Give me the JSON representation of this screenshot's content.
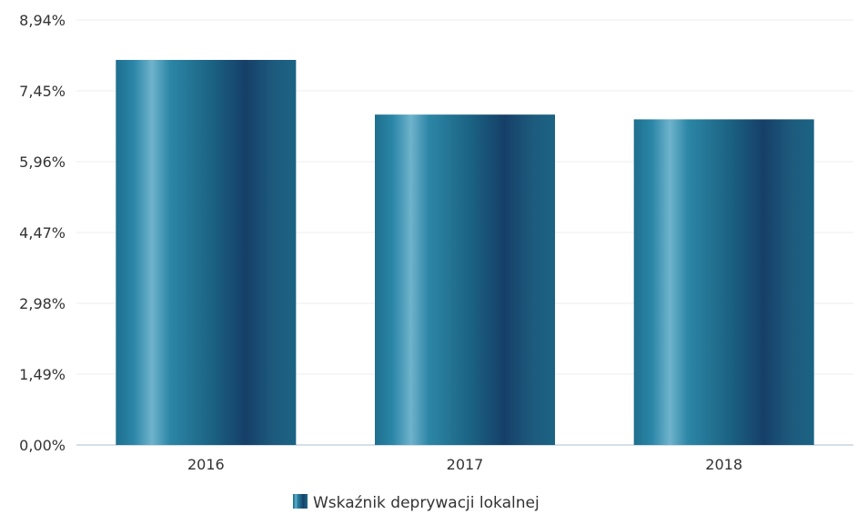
{
  "chart_data": {
    "type": "bar",
    "categories": [
      "2016",
      "2017",
      "2018"
    ],
    "series": [
      {
        "name": "Wskaźnik deprywacji lokalnej",
        "values": [
          8.1,
          6.95,
          6.85
        ]
      }
    ],
    "y_ticks": [
      "0,00%",
      "1,49%",
      "2,98%",
      "4,47%",
      "5,96%",
      "7,45%",
      "8,94%"
    ],
    "ylim": [
      0,
      8.94
    ],
    "grid": true,
    "legend_position": "bottom-center",
    "bar_color": "#1c6f8f"
  }
}
